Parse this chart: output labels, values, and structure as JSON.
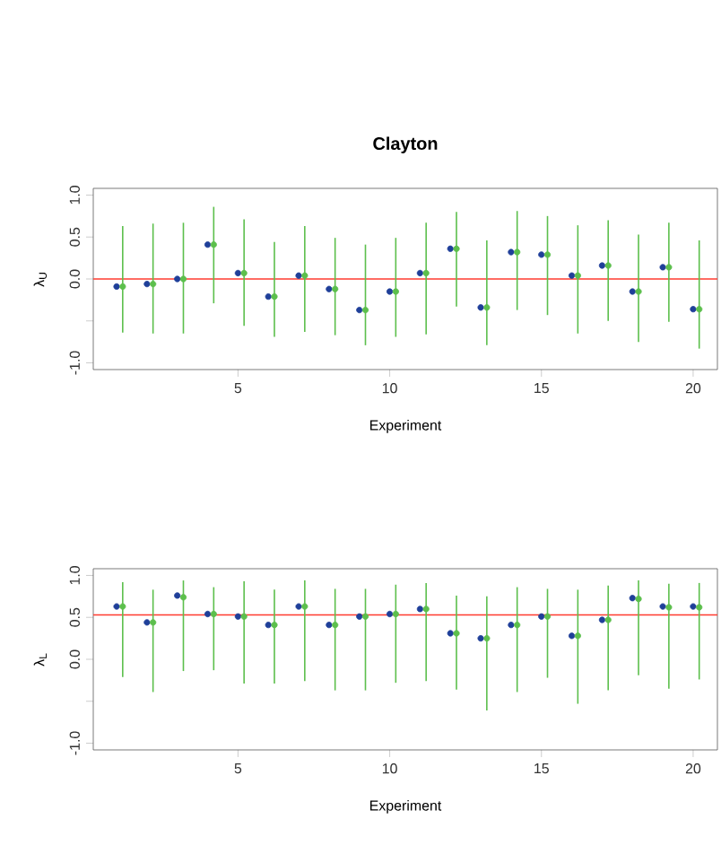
{
  "chart_data": [
    {
      "type": "scatter",
      "title": "Clayton",
      "xlabel": "Experiment",
      "ylabel": "λ$_{U}$",
      "marker": "circle",
      "xlim": [
        0.23,
        20.8
      ],
      "ylim": [
        -1.08,
        1.08
      ],
      "xticks": [
        5,
        10,
        15,
        20
      ],
      "yticks": [
        {
          "value": -1,
          "label": "-1.0"
        },
        {
          "value": -0.5,
          "label": null
        },
        {
          "value": 0,
          "label": "0.0"
        },
        {
          "value": 0.5,
          "label": "0.5"
        },
        {
          "value": 1,
          "label": "1.0"
        }
      ],
      "ref_lines": [
        {
          "axis": "y",
          "value": 0.0,
          "color": "#ff3b2f"
        }
      ],
      "series": [
        {
          "color": "#1f3f99",
          "x": [
            1,
            2,
            3,
            4,
            5,
            6,
            7,
            8,
            9,
            10,
            11,
            12,
            13,
            14,
            15,
            16,
            17,
            18,
            19,
            20
          ],
          "values": [
            -0.09,
            -0.06,
            0.0,
            0.41,
            0.07,
            -0.21,
            0.04,
            -0.12,
            -0.37,
            -0.15,
            0.07,
            0.36,
            -0.34,
            0.32,
            0.29,
            0.04,
            0.16,
            -0.15,
            0.14,
            -0.36
          ]
        },
        {
          "color": "#5cbf4c",
          "x": [
            1.2,
            2.2,
            3.2,
            4.2,
            5.2,
            6.2,
            7.2,
            8.2,
            9.2,
            10.2,
            11.2,
            12.2,
            13.2,
            14.2,
            15.2,
            16.2,
            17.2,
            18.2,
            19.2,
            20.2
          ],
          "values": [
            -0.09,
            -0.06,
            0.0,
            0.41,
            0.07,
            -0.21,
            0.04,
            -0.12,
            -0.37,
            -0.15,
            0.07,
            0.36,
            -0.34,
            0.32,
            0.29,
            0.04,
            0.16,
            -0.15,
            0.14,
            -0.36
          ],
          "errors": [
            [
              -0.64,
              0.63
            ],
            [
              -0.65,
              0.66
            ],
            [
              -0.65,
              0.67
            ],
            [
              -0.29,
              0.86
            ],
            [
              -0.56,
              0.71
            ],
            [
              -0.69,
              0.44
            ],
            [
              -0.63,
              0.63
            ],
            [
              -0.67,
              0.49
            ],
            [
              -0.79,
              0.41
            ],
            [
              -0.69,
              0.49
            ],
            [
              -0.66,
              0.67
            ],
            [
              -0.33,
              0.8
            ],
            [
              -0.79,
              0.46
            ],
            [
              -0.37,
              0.81
            ],
            [
              -0.43,
              0.75
            ],
            [
              -0.65,
              0.64
            ],
            [
              -0.5,
              0.7
            ],
            [
              -0.75,
              0.53
            ],
            [
              -0.51,
              0.67
            ],
            [
              -0.83,
              0.46
            ]
          ]
        }
      ]
    },
    {
      "type": "scatter",
      "xlabel": "Experiment",
      "ylabel": "λ$_{L}$",
      "marker": "circle",
      "xlim": [
        0.23,
        20.8
      ],
      "ylim": [
        -1.08,
        1.08
      ],
      "xticks": [
        5,
        10,
        15,
        20
      ],
      "yticks": [
        {
          "value": -1,
          "label": "-1.0"
        },
        {
          "value": -0.5,
          "label": null
        },
        {
          "value": 0,
          "label": "0.0"
        },
        {
          "value": 0.5,
          "label": "0.5"
        },
        {
          "value": 1,
          "label": "1.0"
        }
      ],
      "ref_lines": [
        {
          "axis": "y",
          "value": 0.53,
          "color": "#ff3b2f"
        }
      ],
      "series": [
        {
          "color": "#1f3f99",
          "x": [
            1,
            2,
            3,
            4,
            5,
            6,
            7,
            8,
            9,
            10,
            11,
            12,
            13,
            14,
            15,
            16,
            17,
            18,
            19,
            20
          ],
          "values": [
            0.63,
            0.44,
            0.76,
            0.54,
            0.51,
            0.41,
            0.63,
            0.41,
            0.51,
            0.54,
            0.6,
            0.31,
            0.25,
            0.41,
            0.51,
            0.28,
            0.47,
            0.73,
            0.63,
            0.63
          ]
        },
        {
          "color": "#5cbf4c",
          "x": [
            1.2,
            2.2,
            3.2,
            4.2,
            5.2,
            6.2,
            7.2,
            8.2,
            9.2,
            10.2,
            11.2,
            12.2,
            13.2,
            14.2,
            15.2,
            16.2,
            17.2,
            18.2,
            19.2,
            20.2
          ],
          "values": [
            0.63,
            0.44,
            0.74,
            0.54,
            0.51,
            0.41,
            0.63,
            0.41,
            0.51,
            0.54,
            0.6,
            0.31,
            0.25,
            0.41,
            0.51,
            0.28,
            0.47,
            0.72,
            0.62,
            0.62
          ],
          "errors": [
            [
              -0.21,
              0.92
            ],
            [
              -0.39,
              0.83
            ],
            [
              -0.14,
              0.94
            ],
            [
              -0.13,
              0.86
            ],
            [
              -0.29,
              0.93
            ],
            [
              -0.29,
              0.83
            ],
            [
              -0.26,
              0.94
            ],
            [
              -0.37,
              0.84
            ],
            [
              -0.37,
              0.84
            ],
            [
              -0.28,
              0.89
            ],
            [
              -0.26,
              0.91
            ],
            [
              -0.36,
              0.76
            ],
            [
              -0.61,
              0.75
            ],
            [
              -0.39,
              0.86
            ],
            [
              -0.22,
              0.84
            ],
            [
              -0.53,
              0.83
            ],
            [
              -0.37,
              0.88
            ],
            [
              -0.19,
              0.94
            ],
            [
              -0.35,
              0.9
            ],
            [
              -0.24,
              0.91
            ]
          ]
        }
      ]
    }
  ]
}
